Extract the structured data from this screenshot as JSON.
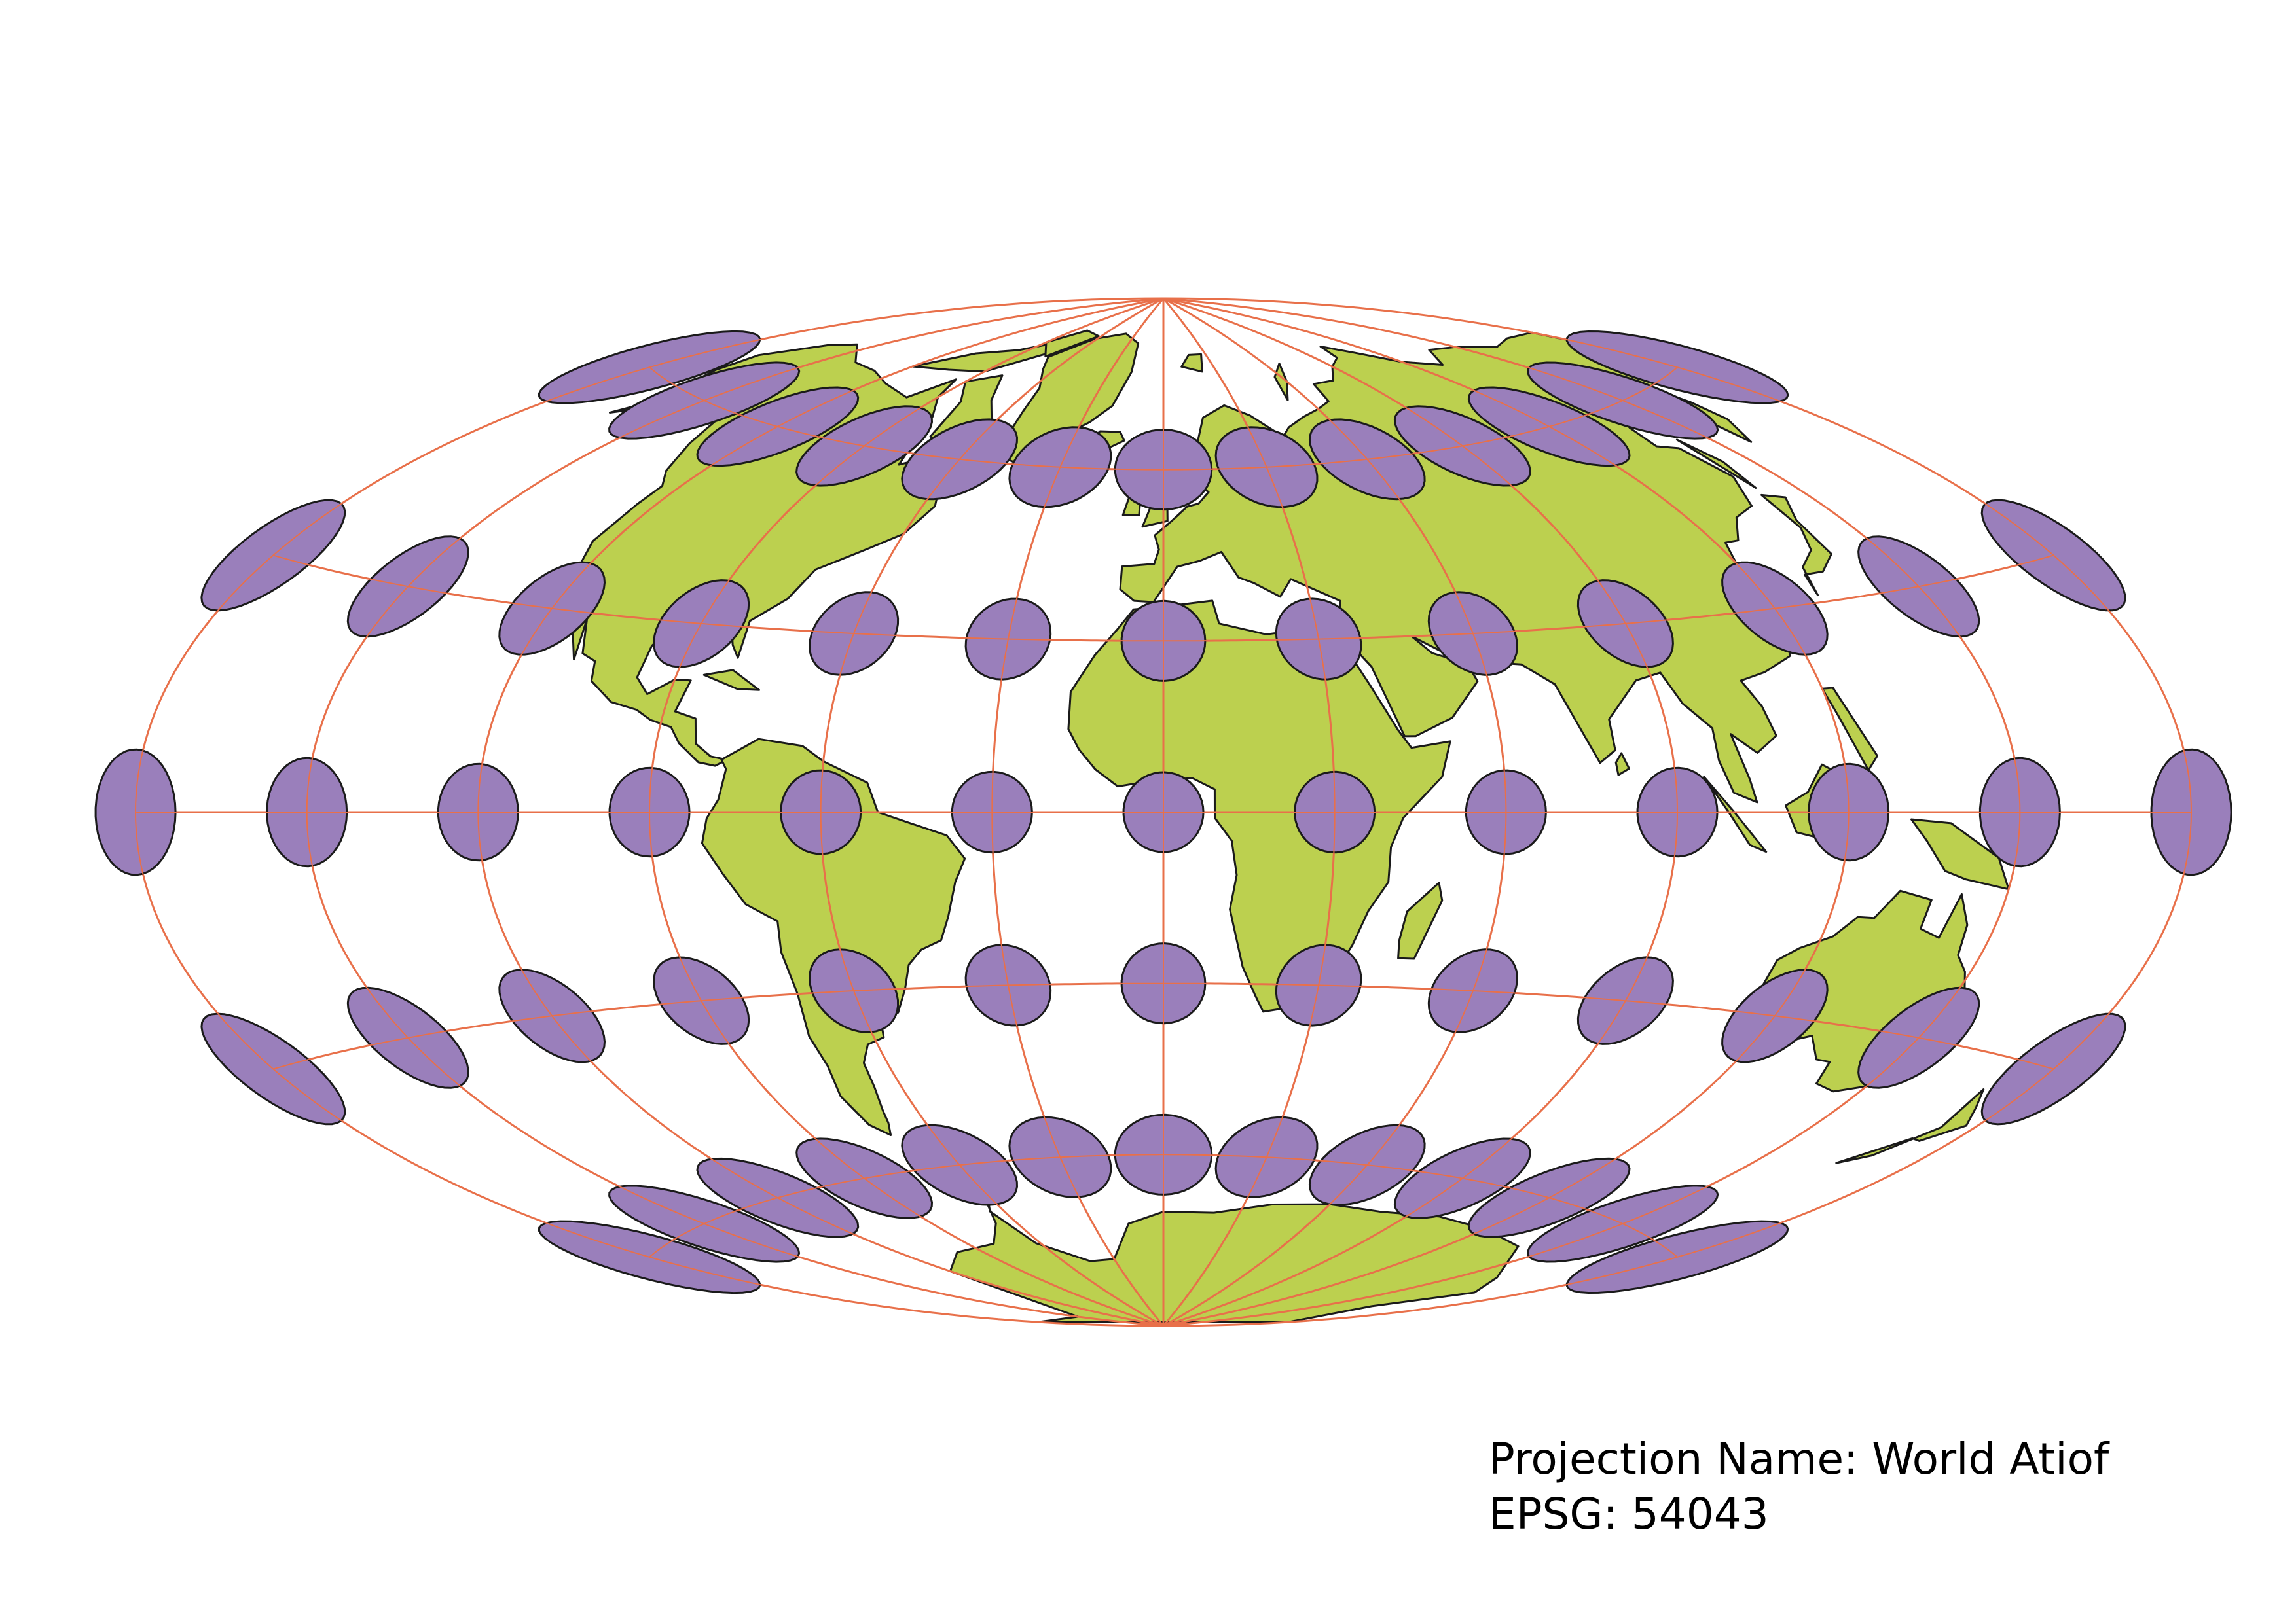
{
  "map": {
    "projection_label": "Projection Name: World Atiof",
    "epsg_label": "EPSG: 54043",
    "colors": {
      "land": "#bcd04f",
      "land_stroke": "#1a1a1a",
      "graticule": "#e8704a",
      "indicatrix_fill": "#9a7fbb",
      "indicatrix_stroke": "#1a1a1a",
      "background": "#ffffff"
    },
    "graticule_spacing_deg": 30,
    "indicatrix_lons": [
      -180,
      -150,
      -120,
      -90,
      -60,
      -30,
      0,
      30,
      60,
      90,
      120,
      150,
      180
    ],
    "indicatrix_lats": [
      60,
      30,
      0,
      -30,
      -60
    ],
    "extra_indicatrix": "Tissot indicatrices at graticule intersections"
  }
}
